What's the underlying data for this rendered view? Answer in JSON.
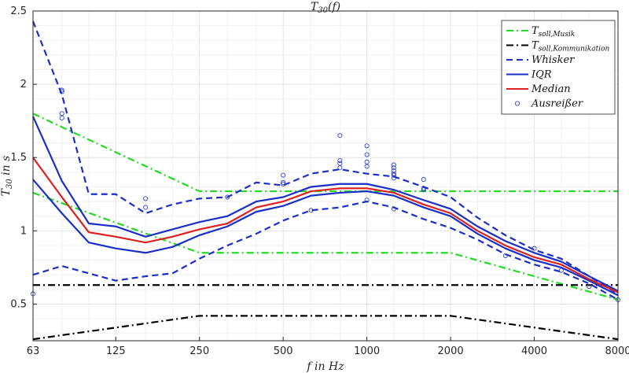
{
  "chart_data": {
    "type": "line",
    "title": "T30(f)",
    "xlabel": "f in Hz",
    "ylabel": "T30 in s",
    "x_scale": "log",
    "xlim": [
      63,
      8000
    ],
    "ylim": [
      0.25,
      2.5
    ],
    "grid": true,
    "legend_position": "top-right",
    "x_ticks": [
      63,
      125,
      250,
      500,
      1000,
      2000,
      4000,
      8000
    ],
    "x_tick_labels": [
      "63",
      "125",
      "250",
      "500",
      "1000",
      "2000",
      "4000",
      "8000"
    ],
    "y_ticks": [
      0.5,
      1,
      1.5,
      2,
      2.5
    ],
    "y_tick_labels": [
      "0.5",
      "1",
      "1.5",
      "2",
      "2.5"
    ],
    "x": [
      63,
      80,
      100,
      125,
      160,
      200,
      250,
      315,
      400,
      500,
      630,
      800,
      1000,
      1250,
      1600,
      2000,
      2500,
      3150,
      4000,
      5000,
      6300,
      8000
    ],
    "series": [
      {
        "name": "T soll,Musik",
        "style": "dashdot",
        "color": "#22dd22",
        "x": [
          63,
          250,
          2000,
          8000
        ],
        "values": [
          1.8,
          1.27,
          1.27,
          1.27
        ]
      },
      {
        "name": "",
        "style": "dashdot",
        "color": "#22dd22",
        "x": [
          63,
          250,
          2000,
          8000
        ],
        "values": [
          1.26,
          0.85,
          0.85,
          0.53
        ]
      },
      {
        "name": "T soll,Kommunikation",
        "style": "dashdot",
        "color": "#000000",
        "x": [
          63,
          8000
        ],
        "values": [
          0.63,
          0.63
        ]
      },
      {
        "name": "",
        "style": "dashdot",
        "color": "#000000",
        "x": [
          63,
          250,
          2000,
          8000
        ],
        "values": [
          0.26,
          0.42,
          0.42,
          0.26
        ]
      },
      {
        "name": "Whisker",
        "style": "dashed",
        "color": "#1a2fc8",
        "values": [
          2.43,
          1.93,
          1.25,
          1.25,
          1.12,
          1.18,
          1.22,
          1.23,
          1.33,
          1.31,
          1.39,
          1.42,
          1.39,
          1.37,
          1.3,
          1.23,
          1.09,
          0.97,
          0.87,
          0.81,
          0.69,
          0.57
        ]
      },
      {
        "name": "",
        "style": "dashed",
        "color": "#1a2fc8",
        "values": [
          0.7,
          0.76,
          0.71,
          0.66,
          0.69,
          0.71,
          0.81,
          0.9,
          0.98,
          1.07,
          1.14,
          1.16,
          1.2,
          1.16,
          1.08,
          1.02,
          0.94,
          0.84,
          0.77,
          0.72,
          0.64,
          0.53
        ]
      },
      {
        "name": "IQR",
        "style": "solid",
        "color": "#1a2fc8",
        "values": [
          1.78,
          1.34,
          1.05,
          1.03,
          0.96,
          1.01,
          1.06,
          1.1,
          1.2,
          1.23,
          1.3,
          1.32,
          1.32,
          1.28,
          1.21,
          1.15,
          1.03,
          0.93,
          0.85,
          0.79,
          0.69,
          0.59
        ]
      },
      {
        "name": "",
        "style": "solid",
        "color": "#1a2fc8",
        "values": [
          1.35,
          1.12,
          0.92,
          0.88,
          0.85,
          0.89,
          0.97,
          1.03,
          1.13,
          1.17,
          1.24,
          1.26,
          1.27,
          1.24,
          1.16,
          1.1,
          0.98,
          0.88,
          0.8,
          0.75,
          0.66,
          0.56
        ]
      },
      {
        "name": "Median",
        "style": "solid",
        "color": "#dd1f1f",
        "values": [
          1.5,
          1.23,
          0.99,
          0.96,
          0.92,
          0.96,
          1.01,
          1.05,
          1.16,
          1.2,
          1.27,
          1.29,
          1.29,
          1.26,
          1.18,
          1.12,
          1.0,
          0.9,
          0.82,
          0.77,
          0.67,
          0.58
        ]
      }
    ],
    "outliers": {
      "name": "Ausreißer",
      "color": "#1a2fc8",
      "points": [
        [
          63,
          0.57
        ],
        [
          80,
          1.95
        ],
        [
          80,
          1.96
        ],
        [
          80,
          1.8
        ],
        [
          80,
          1.77
        ],
        [
          160,
          1.22
        ],
        [
          160,
          1.16
        ],
        [
          315,
          1.23
        ],
        [
          500,
          1.38
        ],
        [
          500,
          1.33
        ],
        [
          500,
          1.32
        ],
        [
          630,
          1.14
        ],
        [
          800,
          1.65
        ],
        [
          800,
          1.48
        ],
        [
          800,
          1.46
        ],
        [
          800,
          1.43
        ],
        [
          1000,
          1.58
        ],
        [
          1000,
          1.52
        ],
        [
          1000,
          1.47
        ],
        [
          1000,
          1.44
        ],
        [
          1000,
          1.21
        ],
        [
          1250,
          1.45
        ],
        [
          1250,
          1.43
        ],
        [
          1250,
          1.41
        ],
        [
          1250,
          1.39
        ],
        [
          1250,
          1.38
        ],
        [
          1250,
          1.36
        ],
        [
          1250,
          1.15
        ],
        [
          1600,
          1.35
        ],
        [
          1600,
          1.29
        ],
        [
          1600,
          1.28
        ],
        [
          3150,
          0.83
        ],
        [
          4000,
          0.88
        ],
        [
          5000,
          0.73
        ],
        [
          6300,
          0.62
        ],
        [
          8000,
          0.53
        ]
      ]
    },
    "legend": [
      {
        "label": "T",
        "sub": "soll,Musik",
        "style": "dashdot",
        "color": "#22dd22"
      },
      {
        "label": "T",
        "sub": "soll,Kommunikation",
        "style": "dashdot",
        "color": "#000000"
      },
      {
        "label": "Whisker",
        "sub": "",
        "style": "dashed",
        "color": "#1a2fc8"
      },
      {
        "label": "IQR",
        "sub": "",
        "style": "solid",
        "color": "#1a2fc8"
      },
      {
        "label": "Median",
        "sub": "",
        "style": "solid",
        "color": "#dd1f1f"
      },
      {
        "label": "Ausreißer",
        "sub": "",
        "style": "marker",
        "color": "#1a2fc8"
      }
    ]
  }
}
